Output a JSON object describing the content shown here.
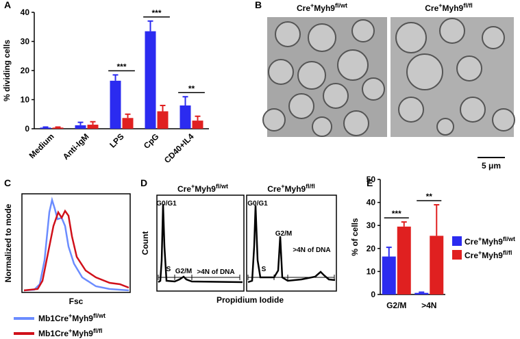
{
  "chart_data": [
    {
      "type": "bar",
      "ylabel": "% dividing cells",
      "categories": [
        "Medium",
        "Anti-IgM",
        "LPS",
        "CpG",
        "CD40+IL4"
      ],
      "series": [
        {
          "color": "#2b2bf0",
          "values": [
            0.4,
            1.2,
            16.5,
            33.5,
            8
          ],
          "errors": [
            0.2,
            1,
            2,
            3.5,
            3
          ]
        },
        {
          "color": "#e02020",
          "values": [
            0.4,
            1.4,
            3.7,
            6,
            2.8
          ],
          "errors": [
            0.2,
            1,
            1.3,
            2,
            1.5
          ]
        }
      ],
      "significance": [
        null,
        null,
        "***",
        "***",
        "**"
      ],
      "ylim": [
        0,
        40
      ],
      "yticks": [
        0,
        10,
        20,
        30,
        40
      ]
    },
    {
      "type": "bar",
      "ylabel": "% of cells",
      "categories": [
        "G2/M",
        ">4N"
      ],
      "series": [
        {
          "name": [
            "Cre",
            "+",
            "Myh9",
            "fl/wt"
          ],
          "color": "#2b2bf0",
          "values": [
            16.5,
            0.7
          ],
          "errors": [
            4,
            0.3
          ]
        },
        {
          "name": [
            "Cre",
            "+",
            "Myh9",
            "fl/fl"
          ],
          "color": "#e02020",
          "values": [
            29.5,
            25.5
          ],
          "errors": [
            2,
            13.5
          ]
        }
      ],
      "significance": [
        "***",
        "**"
      ],
      "ylim": [
        0,
        50
      ],
      "yticks": [
        0,
        10,
        20,
        30,
        40,
        50
      ]
    }
  ],
  "panel_labels": [
    "A",
    "B",
    "C",
    "D",
    "E"
  ],
  "panel_b": {
    "titles": [
      [
        "Cre",
        "+",
        "Myh9",
        "fl/wt"
      ],
      [
        "Cre",
        "+",
        "Myh9",
        "fl/fl"
      ]
    ],
    "scale": "5 μm"
  },
  "panel_c": {
    "ylabel": "Normalized to mode",
    "xlabel": "Fsc",
    "legend": [
      [
        "Mb1Cre",
        "+",
        "Myh9",
        "fl/wt"
      ],
      [
        "Mb1Cre",
        "+",
        "Myh9",
        "fl/fl"
      ]
    ]
  },
  "panel_d": {
    "titles": [
      [
        "Cre",
        "+",
        "Myh9",
        "fl/wt"
      ],
      [
        "Cre",
        "+",
        "Myh9",
        "fl/fl"
      ]
    ],
    "ylabel": "Count",
    "xlabel": "Propidium Iodide",
    "gates": [
      "G0/G1",
      "S",
      "G2/M",
      ">4N of DNA"
    ]
  }
}
